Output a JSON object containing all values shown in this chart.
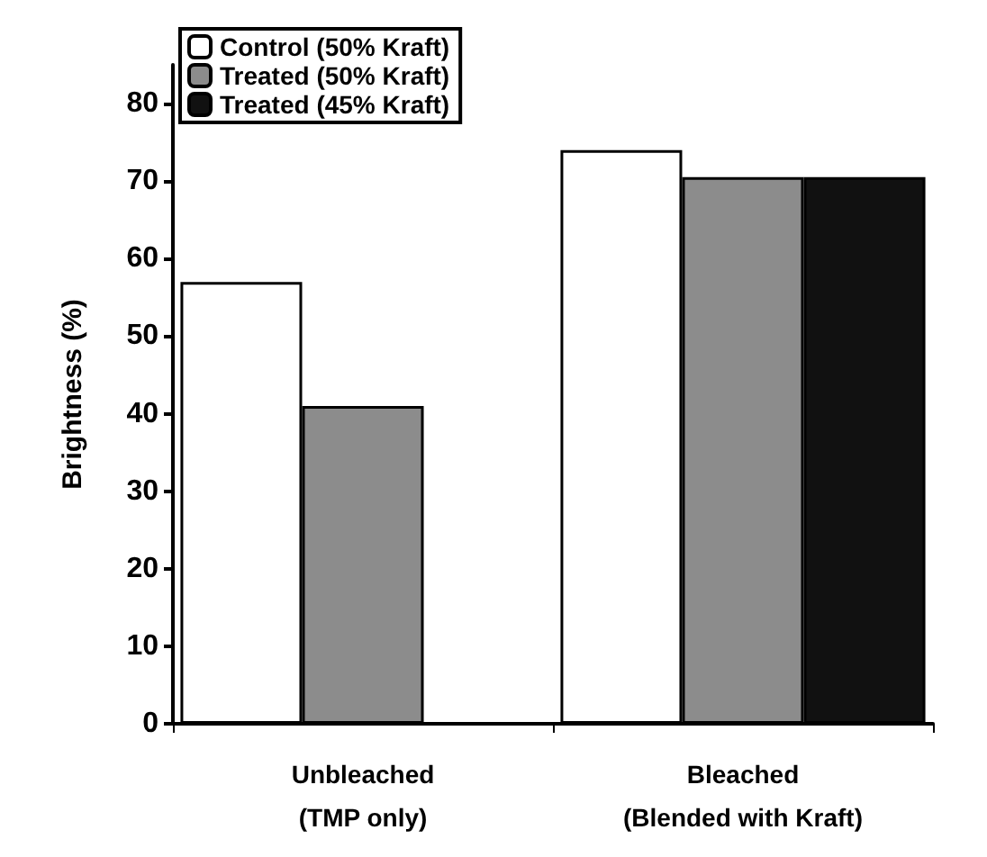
{
  "chart_data": {
    "type": "bar",
    "ylabel": "Brightness (%)",
    "categories": [
      "Unbleached\n(TMP only)",
      "Bleached\n(Blended with Kraft)"
    ],
    "series": [
      {
        "name": "Control (50% Kraft)",
        "color": "#ffffff",
        "values": [
          57,
          74
        ]
      },
      {
        "name": "Treated (50% Kraft)",
        "color": "#8c8c8c",
        "values": [
          41,
          70.5
        ]
      },
      {
        "name": "Treated (45% Kraft)",
        "color": "#111111",
        "values": [
          null,
          70.5
        ]
      }
    ],
    "ylim": [
      0,
      85
    ],
    "yticks": [
      0,
      10,
      20,
      30,
      40,
      50,
      60,
      70,
      80
    ],
    "grid": false,
    "legend": "top left"
  }
}
